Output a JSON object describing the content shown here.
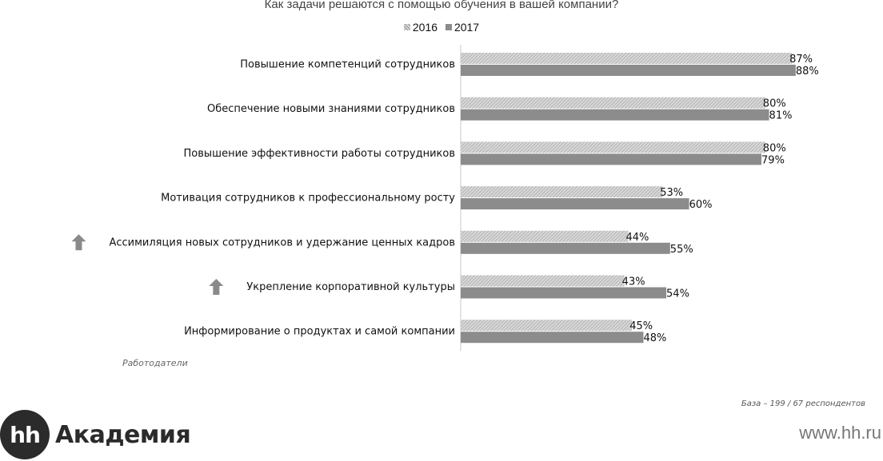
{
  "chart_data": {
    "type": "bar",
    "orientation": "horizontal",
    "title": "Как задачи решаются с помощью обучения в вашей компании?",
    "categories": [
      "Повышение компетенций сотрудников",
      "Обеспечение новыми знаниями сотрудников",
      "Повышение эффективности работы сотрудников",
      "Мотивация сотрудников к профессиональному росту",
      "Ассимиляция новых сотрудников и удержание ценных кадров",
      "Укрепление корпоративной культуры",
      "Информирование о продуктах и самой компании"
    ],
    "series": [
      {
        "name": "2016",
        "values": [
          87,
          80,
          80,
          53,
          44,
          43,
          45
        ],
        "labels": [
          "87%",
          "80%",
          "80%",
          "53%",
          "44%",
          "43%",
          "45%"
        ],
        "color": "#d6d6d6",
        "pattern": "hatched"
      },
      {
        "name": "2017",
        "values": [
          88,
          81,
          79,
          60,
          55,
          54,
          48
        ],
        "labels": [
          "88%",
          "81%",
          "79%",
          "60%",
          "55%",
          "54%",
          "48%"
        ],
        "color": "#8c8c8c",
        "pattern": "solid"
      }
    ],
    "xlim": [
      0,
      100
    ],
    "unit": "%",
    "grid": false,
    "legend_position": "top-center",
    "highlighted_categories": [
      4,
      5
    ],
    "highlight_icon": "up-arrow-icon"
  },
  "footnote_left": "Работодатели",
  "footnote_right": "База – 199 / 67 респондентов",
  "logo": {
    "mark": "hh",
    "text": "Академия"
  },
  "site": "www.hh.ru"
}
